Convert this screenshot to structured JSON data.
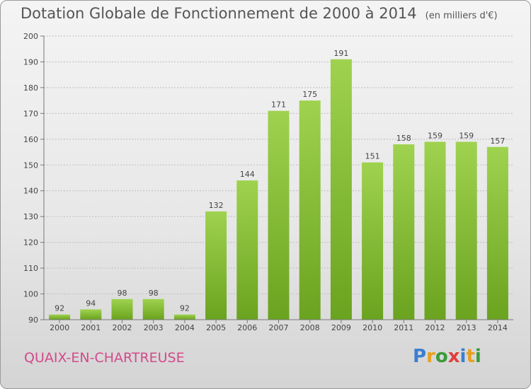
{
  "header": {
    "title": "Dotation Globale de Fonctionnement de 2000 à 2014",
    "subtitle": "(en milliers d'€)"
  },
  "commune": "QUAIX-EN-CHARTREUSE",
  "logo": {
    "text": "Proxiti",
    "letters": [
      {
        "ch": "P",
        "color": "#3a7fd1"
      },
      {
        "ch": "r",
        "color": "#e8a020"
      },
      {
        "ch": "o",
        "color": "#3a9a3a"
      },
      {
        "ch": "x",
        "color": "#e23c3c"
      },
      {
        "ch": "i",
        "color": "#3a7fd1"
      },
      {
        "ch": "t",
        "color": "#e8a020"
      },
      {
        "ch": "i",
        "color": "#3a9a3a"
      }
    ]
  },
  "chart_data": {
    "type": "bar",
    "categories": [
      "2000",
      "2001",
      "2002",
      "2003",
      "2004",
      "2005",
      "2006",
      "2007",
      "2008",
      "2009",
      "2010",
      "2011",
      "2012",
      "2013",
      "2014"
    ],
    "values": [
      92,
      94,
      98,
      98,
      92,
      132,
      144,
      171,
      175,
      191,
      151,
      158,
      159,
      159,
      157
    ],
    "ylim": [
      90,
      200
    ],
    "yticks": [
      90,
      100,
      110,
      120,
      130,
      140,
      150,
      160,
      170,
      180,
      190,
      200
    ],
    "grid": true,
    "bar_color_top": "#9fd24f",
    "bar_color_bottom": "#6aa31f",
    "grid_color": "#bdbdbd"
  }
}
